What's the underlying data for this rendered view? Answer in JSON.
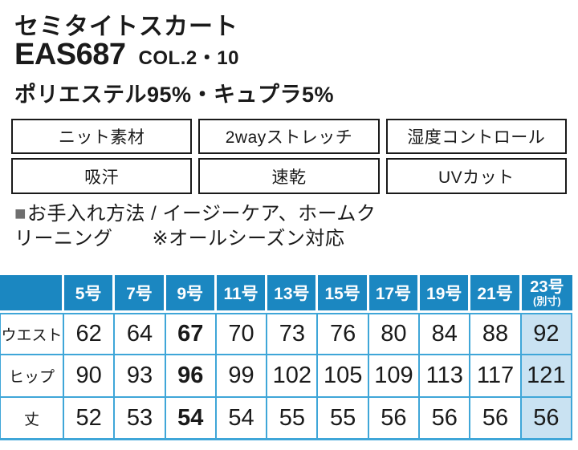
{
  "colors": {
    "header_blue": "#1b87c1",
    "grid_blue": "#3fa6d8",
    "highlight_blue": "#c9e2f2",
    "badge_border": "#1a1a1a",
    "bullet_gray": "#6f6f6f"
  },
  "product": {
    "name": "セミタイトスカート",
    "code": "EAS687",
    "color_label": "COL.2・10",
    "material": "ポリエステル95%・キュプラ5%"
  },
  "features": [
    "ニット素材",
    "2wayストレッチ",
    "湿度コントロール",
    "吸汗",
    "速乾",
    "UVカット"
  ],
  "care": {
    "bullet": "■",
    "line1": "お手入れ方法 / イージーケア、ホームク",
    "line2": "リーニング　　※オールシーズン対応"
  },
  "size_table": {
    "columns": [
      "5号",
      "7号",
      "9号",
      "11号",
      "13号",
      "15号",
      "17号",
      "19号",
      "21号",
      "23号"
    ],
    "size23_note": "(別寸)",
    "bold_column": "9号",
    "highlight_column": "23号",
    "rows": [
      {
        "label": "ウエスト",
        "values": [
          "62",
          "64",
          "67",
          "70",
          "73",
          "76",
          "80",
          "84",
          "88",
          "92"
        ]
      },
      {
        "label": "ヒップ",
        "values": [
          "90",
          "93",
          "96",
          "99",
          "102",
          "105",
          "109",
          "113",
          "117",
          "121"
        ]
      },
      {
        "label": "丈",
        "values": [
          "52",
          "53",
          "54",
          "54",
          "55",
          "55",
          "56",
          "56",
          "56",
          "56"
        ]
      }
    ]
  }
}
